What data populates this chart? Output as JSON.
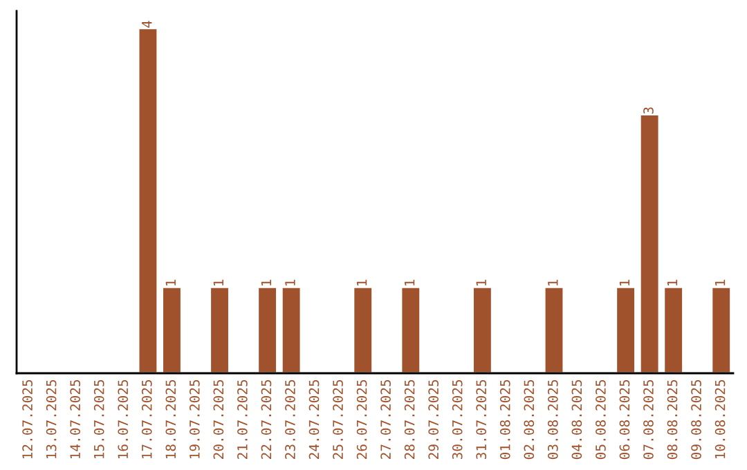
{
  "chart_data": {
    "type": "bar",
    "categories": [
      "12.07.2025",
      "13.07.2025",
      "14.07.2025",
      "15.07.2025",
      "16.07.2025",
      "17.07.2025",
      "18.07.2025",
      "19.07.2025",
      "20.07.2025",
      "21.07.2025",
      "22.07.2025",
      "23.07.2025",
      "24.07.2025",
      "25.07.2025",
      "26.07.2025",
      "27.07.2025",
      "28.07.2025",
      "29.07.2025",
      "30.07.2025",
      "31.07.2025",
      "01.08.2025",
      "02.08.2025",
      "03.08.2025",
      "04.08.2025",
      "05.08.2025",
      "06.08.2025",
      "07.08.2025",
      "08.08.2025",
      "09.08.2025",
      "10.08.2025"
    ],
    "values": [
      null,
      null,
      null,
      null,
      null,
      4,
      1,
      null,
      1,
      null,
      1,
      1,
      null,
      null,
      1,
      null,
      1,
      null,
      null,
      1,
      null,
      null,
      1,
      null,
      null,
      1,
      3,
      1,
      null,
      1
    ],
    "value_labels": [
      null,
      null,
      null,
      null,
      null,
      "4",
      "1",
      null,
      "1",
      null,
      "1",
      "1",
      null,
      null,
      "1",
      null,
      "1",
      null,
      null,
      "1",
      null,
      null,
      "1",
      null,
      null,
      "1",
      "3",
      "1",
      null,
      "1"
    ],
    "color": "#a0522d",
    "ylim": [
      0,
      4.2
    ],
    "tick_labels": "x",
    "grid": false,
    "legend": false
  }
}
